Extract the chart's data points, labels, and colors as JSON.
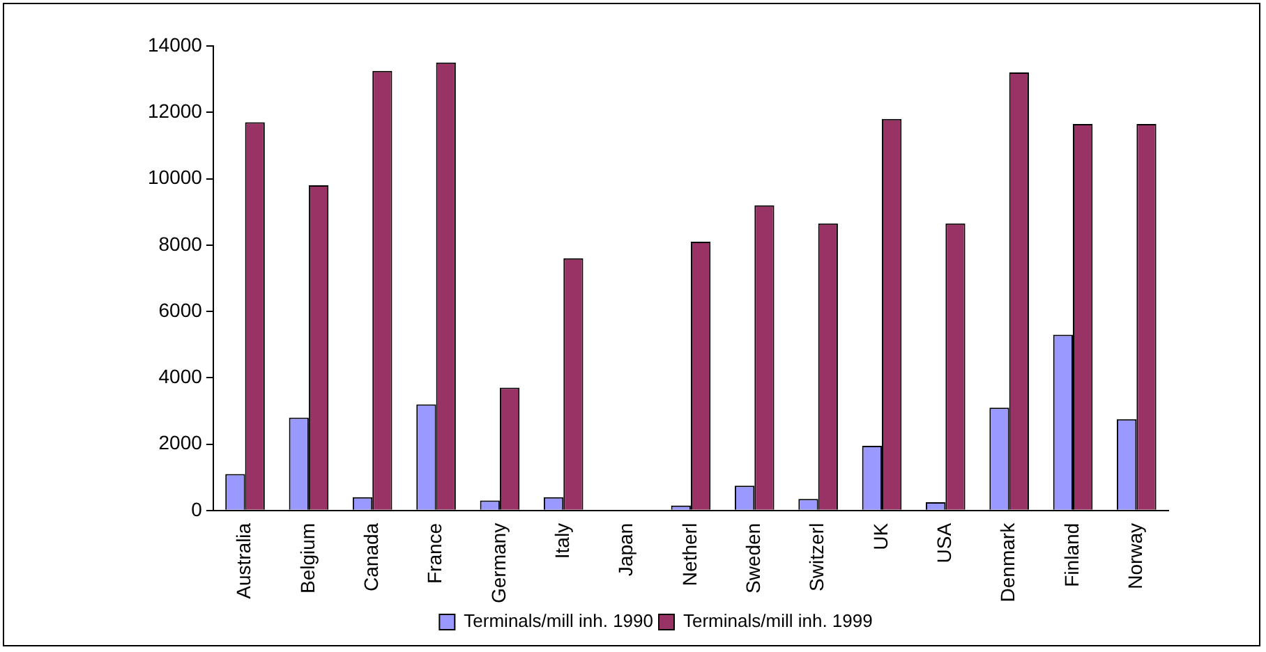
{
  "chart_data": {
    "type": "bar",
    "categories": [
      "Australia",
      "Belgium",
      "Canada",
      "France",
      "Germany",
      "Italy",
      "Japan",
      "Netherl",
      "Sweden",
      "Switzerl",
      "UK",
      "USA",
      "Denmark",
      "Finland",
      "Norway"
    ],
    "series": [
      {
        "name": "Terminals/mill inh. 1990",
        "color": "#9999ff",
        "values": [
          1100,
          2800,
          400,
          3200,
          300,
          400,
          null,
          150,
          750,
          350,
          1950,
          250,
          3100,
          5300,
          2750
        ]
      },
      {
        "name": "Terminals/mill inh. 1999",
        "color": "#993366",
        "values": [
          11700,
          9800,
          13250,
          13500,
          3700,
          7600,
          null,
          8100,
          9200,
          8650,
          11800,
          8650,
          13200,
          11650,
          11650
        ]
      }
    ],
    "ylim": [
      0,
      14000
    ],
    "yticks": [
      0,
      2000,
      4000,
      6000,
      8000,
      10000,
      12000,
      14000
    ],
    "grid": false,
    "legend": "bottom"
  }
}
